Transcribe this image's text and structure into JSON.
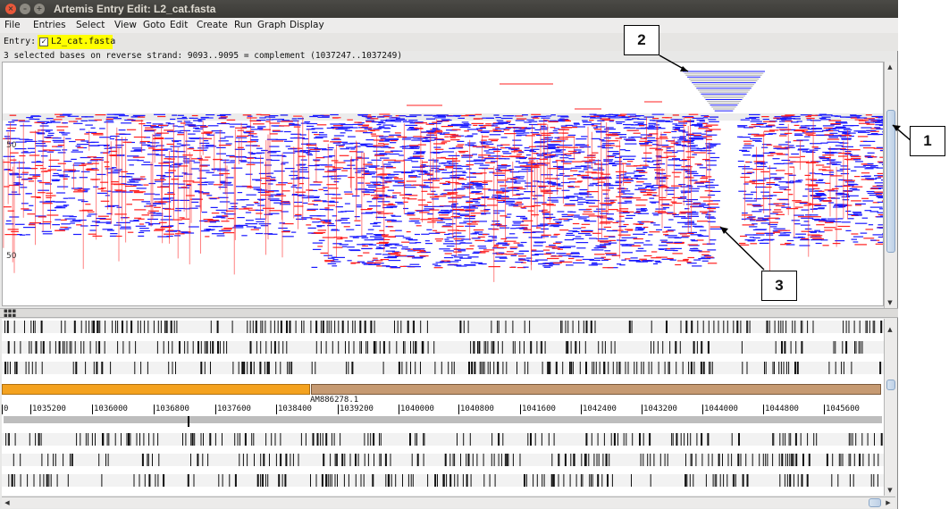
{
  "window": {
    "title": "Artemis Entry Edit: L2_cat.fasta"
  },
  "menu": [
    "File",
    "Entries",
    "Select",
    "View",
    "Goto",
    "Edit",
    "Create",
    "Run",
    "Graph",
    "Display"
  ],
  "entry": {
    "label": "Entry:",
    "name": "L2_cat.fasta",
    "checked": true
  },
  "status": "3 selected bases on reverse strand: 9093..9095  = complement (1037247..1037249)",
  "reads_panel": {
    "y_labels": [
      "50",
      "50"
    ]
  },
  "contig": {
    "label": "AM886278.1",
    "left_color": "#f4a21f",
    "right_color": "#c69a72"
  },
  "ruler": {
    "ticks": [
      "0",
      "1035200",
      "1036000",
      "1036800",
      "1037600",
      "1038400",
      "1039200",
      "1040000",
      "1040800",
      "1041600",
      "1042400",
      "1043200",
      "1044000",
      "1044800",
      "1045600"
    ]
  },
  "annotations": [
    "2",
    "1",
    "3"
  ],
  "colors": {
    "forward_read": "#1a1aff",
    "reverse_read": "#ff2020",
    "inferred_size": "#aaaaaa"
  },
  "icons": [
    "close-icon",
    "minimize-icon",
    "maximize-icon",
    "checkbox-icon",
    "arrow-up-icon",
    "arrow-down-icon",
    "arrow-left-icon",
    "arrow-right-icon"
  ]
}
